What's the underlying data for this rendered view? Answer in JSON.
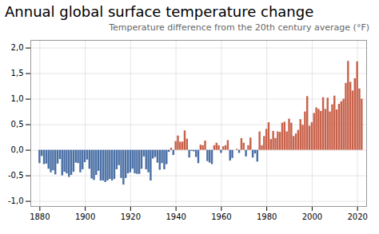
{
  "chart_data": {
    "type": "bar",
    "title": "Annual global surface temperature change",
    "subtitle": "Temperature difference from the 20th century average (°F)",
    "x": [
      1880,
      1881,
      1882,
      1883,
      1884,
      1885,
      1886,
      1887,
      1888,
      1889,
      1890,
      1891,
      1892,
      1893,
      1894,
      1895,
      1896,
      1897,
      1898,
      1899,
      1900,
      1901,
      1902,
      1903,
      1904,
      1905,
      1906,
      1907,
      1908,
      1909,
      1910,
      1911,
      1912,
      1913,
      1914,
      1915,
      1916,
      1917,
      1918,
      1919,
      1920,
      1921,
      1922,
      1923,
      1924,
      1925,
      1926,
      1927,
      1928,
      1929,
      1930,
      1931,
      1932,
      1933,
      1934,
      1935,
      1936,
      1937,
      1938,
      1939,
      1940,
      1941,
      1942,
      1943,
      1944,
      1945,
      1946,
      1947,
      1948,
      1949,
      1950,
      1951,
      1952,
      1953,
      1954,
      1955,
      1956,
      1957,
      1958,
      1959,
      1960,
      1961,
      1962,
      1963,
      1964,
      1965,
      1966,
      1967,
      1968,
      1969,
      1970,
      1971,
      1972,
      1973,
      1974,
      1975,
      1976,
      1977,
      1978,
      1979,
      1980,
      1981,
      1982,
      1983,
      1984,
      1985,
      1986,
      1987,
      1988,
      1989,
      1990,
      1991,
      1992,
      1993,
      1994,
      1995,
      1996,
      1997,
      1998,
      1999,
      2000,
      2001,
      2002,
      2003,
      2004,
      2005,
      2006,
      2007,
      2008,
      2009,
      2010,
      2011,
      2012,
      2013,
      2014,
      2015,
      2016,
      2017,
      2018,
      2019,
      2020,
      2021,
      2022
    ],
    "values": [
      -0.26,
      -0.12,
      -0.28,
      -0.27,
      -0.37,
      -0.44,
      -0.4,
      -0.48,
      -0.27,
      -0.18,
      -0.5,
      -0.43,
      -0.46,
      -0.53,
      -0.49,
      -0.43,
      -0.25,
      -0.26,
      -0.44,
      -0.38,
      -0.24,
      -0.19,
      -0.37,
      -0.56,
      -0.59,
      -0.49,
      -0.41,
      -0.6,
      -0.6,
      -0.63,
      -0.6,
      -0.57,
      -0.6,
      -0.57,
      -0.38,
      -0.3,
      -0.55,
      -0.68,
      -0.55,
      -0.46,
      -0.44,
      -0.37,
      -0.46,
      -0.47,
      -0.47,
      -0.37,
      -0.13,
      -0.38,
      -0.44,
      -0.6,
      -0.17,
      -0.14,
      -0.25,
      -0.39,
      -0.26,
      -0.38,
      -0.28,
      -0.04,
      0.04,
      -0.1,
      0.17,
      0.28,
      0.16,
      0.16,
      0.38,
      0.22,
      -0.15,
      -0.02,
      -0.03,
      -0.14,
      -0.26,
      0.1,
      0.09,
      0.18,
      -0.22,
      -0.25,
      -0.28,
      0.09,
      0.14,
      0.09,
      -0.06,
      0.07,
      0.09,
      0.19,
      -0.21,
      -0.16,
      0.0,
      0.02,
      -0.06,
      0.23,
      0.14,
      -0.13,
      0.09,
      0.24,
      -0.15,
      -0.07,
      -0.23,
      0.36,
      0.09,
      0.27,
      0.41,
      0.54,
      0.21,
      0.37,
      0.23,
      0.36,
      0.35,
      0.53,
      0.55,
      0.36,
      0.61,
      0.53,
      0.27,
      0.32,
      0.39,
      0.6,
      0.49,
      0.75,
      1.05,
      0.47,
      0.54,
      0.72,
      0.83,
      0.8,
      0.76,
      1.03,
      0.8,
      1.02,
      0.75,
      0.89,
      1.06,
      0.79,
      0.9,
      0.95,
      1.0,
      1.31,
      1.74,
      1.33,
      1.16,
      1.4,
      1.73,
      1.2,
      1.0
    ],
    "colors": [
      "#4a6fa5",
      "#4a6fa5",
      "#4a6fa5",
      "#4a6fa5",
      "#4a6fa5",
      "#4a6fa5",
      "#4a6fa5",
      "#4a6fa5",
      "#4a6fa5",
      "#4a6fa5",
      "#4a6fa5",
      "#4a6fa5",
      "#4a6fa5",
      "#4a6fa5",
      "#4a6fa5",
      "#4a6fa5",
      "#4a6fa5",
      "#4a6fa5",
      "#4a6fa5",
      "#4a6fa5",
      "#4a6fa5",
      "#4a6fa5",
      "#4a6fa5",
      "#4a6fa5",
      "#4a6fa5",
      "#4a6fa5",
      "#4a6fa5",
      "#4a6fa5",
      "#4a6fa5",
      "#4a6fa5",
      "#4a6fa5",
      "#4a6fa5",
      "#4a6fa5",
      "#4a6fa5",
      "#4a6fa5",
      "#4a6fa5",
      "#4a6fa5",
      "#4a6fa5",
      "#4a6fa5",
      "#4a6fa5",
      "#4a6fa5",
      "#4a6fa5",
      "#4a6fa5",
      "#4a6fa5",
      "#4a6fa5",
      "#4a6fa5",
      "#4a6fa5",
      "#4a6fa5",
      "#4a6fa5",
      "#4a6fa5",
      "#4a6fa5",
      "#4a6fa5",
      "#4a6fa5",
      "#4a6fa5",
      "#4a6fa5",
      "#4a6fa5",
      "#4a6fa5",
      "#4a6fa5",
      "#c8614a",
      "#4a6fa5",
      "#c8614a",
      "#c8614a",
      "#c8614a",
      "#c8614a",
      "#c8614a",
      "#c8614a",
      "#4a6fa5",
      "#4a6fa5",
      "#4a6fa5",
      "#4a6fa5",
      "#4a6fa5",
      "#c8614a",
      "#c8614a",
      "#c8614a",
      "#4a6fa5",
      "#4a6fa5",
      "#4a6fa5",
      "#c8614a",
      "#c8614a",
      "#c8614a",
      "#4a6fa5",
      "#c8614a",
      "#c8614a",
      "#c8614a",
      "#4a6fa5",
      "#4a6fa5",
      "#c8614a",
      "#c8614a",
      "#4a6fa5",
      "#c8614a",
      "#c8614a",
      "#4a6fa5",
      "#c8614a",
      "#c8614a",
      "#4a6fa5",
      "#4a6fa5",
      "#4a6fa5",
      "#c8614a",
      "#c8614a",
      "#c8614a",
      "#c8614a",
      "#c8614a",
      "#c8614a",
      "#c8614a",
      "#c8614a",
      "#c8614a",
      "#c8614a",
      "#c8614a",
      "#c8614a",
      "#c8614a",
      "#c8614a",
      "#c8614a",
      "#c8614a",
      "#c8614a",
      "#c8614a",
      "#c8614a",
      "#c8614a",
      "#c8614a",
      "#c8614a",
      "#c8614a",
      "#c8614a",
      "#c8614a",
      "#c8614a",
      "#c8614a",
      "#c8614a",
      "#c8614a",
      "#c8614a",
      "#c8614a",
      "#c8614a",
      "#c8614a",
      "#c8614a",
      "#c8614a",
      "#c8614a",
      "#c8614a",
      "#c8614a",
      "#c8614a",
      "#c8614a",
      "#c8614a",
      "#c8614a",
      "#c8614a",
      "#c8614a",
      "#c8614a",
      "#c8614a"
    ],
    "xlim": [
      1876,
      2024
    ],
    "xticks": [
      1880,
      1900,
      1920,
      1940,
      1960,
      1980,
      2000,
      2020
    ],
    "ylim": [
      -1.1,
      2.15
    ],
    "yticks": [
      {
        "value": -1.0,
        "label": "-1,0"
      },
      {
        "value": -0.5,
        "label": "-0,5"
      },
      {
        "value": 0.0,
        "label": "0,0"
      },
      {
        "value": 0.5,
        "label": "0,5"
      },
      {
        "value": 1.0,
        "label": "1,0"
      },
      {
        "value": 1.5,
        "label": "1,5"
      },
      {
        "value": 2.0,
        "label": "2,0"
      }
    ],
    "grid": true
  }
}
